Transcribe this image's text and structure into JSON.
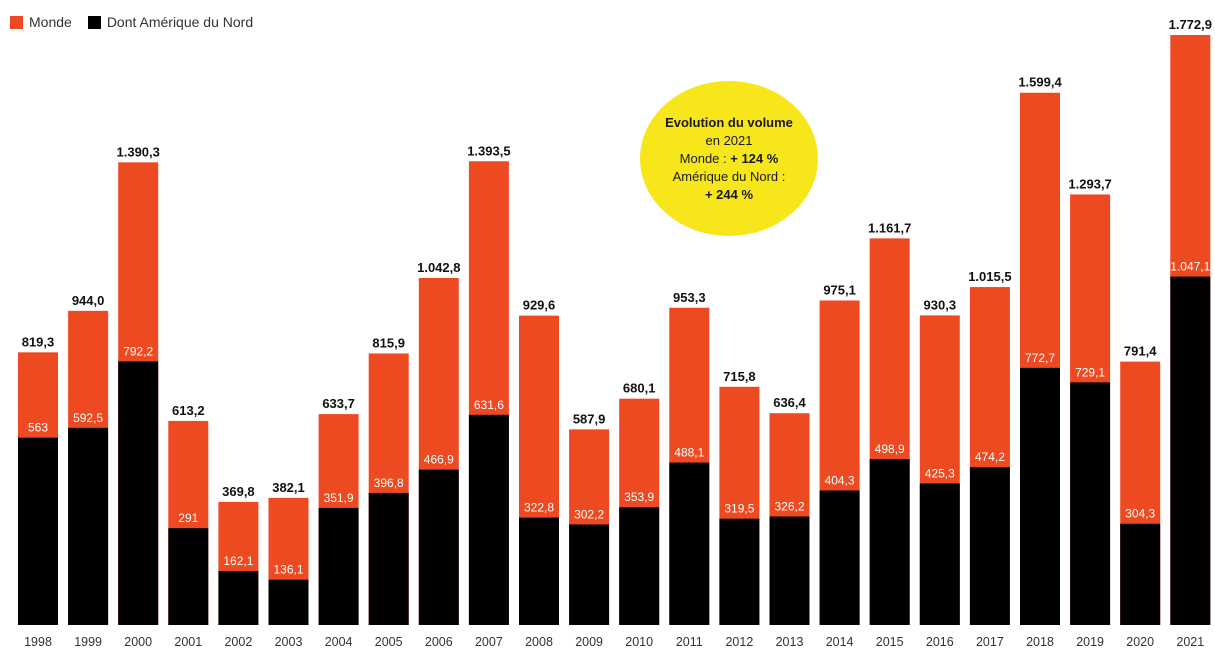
{
  "colors": {
    "monde": "#ee4a22",
    "amerique_du_nord": "#000000",
    "bubble": "#f6e61a"
  },
  "legend": {
    "monde": "Monde",
    "amerique_du_nord": "Dont Amérique du Nord"
  },
  "annotation": {
    "title_line1": "Evolution du volume",
    "title_line2": "en 2021",
    "monde_label": "Monde : ",
    "monde_value": "+ 124 %",
    "na_label": "Amérique du Nord :",
    "na_value": "+ 244 %"
  },
  "chart_data": {
    "type": "bar",
    "stacked": "overlay",
    "categories": [
      "1998",
      "1999",
      "2000",
      "2001",
      "2002",
      "2003",
      "2004",
      "2005",
      "2006",
      "2007",
      "2008",
      "2009",
      "2010",
      "2011",
      "2012",
      "2013",
      "2014",
      "2015",
      "2016",
      "2017",
      "2018",
      "2019",
      "2020",
      "2021"
    ],
    "series": [
      {
        "name": "Monde",
        "values": [
          819.3,
          944.0,
          1390.3,
          613.2,
          369.8,
          382.1,
          633.7,
          815.9,
          1042.8,
          1393.5,
          929.6,
          587.9,
          680.1,
          953.3,
          715.8,
          636.4,
          975.1,
          1161.7,
          930.3,
          1015.5,
          1599.4,
          1293.7,
          791.4,
          1772.9
        ],
        "labels": [
          "819,3",
          "944,0",
          "1.390,3",
          "613,2",
          "369,8",
          "382,1",
          "633,7",
          "815,9",
          "1.042,8",
          "1.393,5",
          "929,6",
          "587,9",
          "680,1",
          "953,3",
          "715,8",
          "636,4",
          "975,1",
          "1.161,7",
          "930,3",
          "1.015,5",
          "1.599,4",
          "1.293,7",
          "791,4",
          "1.772,9"
        ]
      },
      {
        "name": "Dont Amérique du Nord",
        "values": [
          563,
          592.5,
          792.2,
          291,
          162.1,
          136.1,
          351.9,
          396.8,
          466.9,
          631.6,
          322.8,
          302.2,
          353.9,
          488.1,
          319.5,
          326.2,
          404.3,
          498.9,
          425.3,
          474.2,
          772.7,
          729.1,
          304.3,
          1047.1
        ],
        "labels": [
          "563",
          "592,5",
          "792,2",
          "291",
          "162,1",
          "136,1",
          "351,9",
          "396,8",
          "466,9",
          "631,6",
          "322,8",
          "302,2",
          "353,9",
          "488,1",
          "319,5",
          "326,2",
          "404,3",
          "498,9",
          "425,3",
          "474,2",
          "772,7",
          "729,1",
          "304,3",
          "1.047,1"
        ]
      }
    ],
    "title": "",
    "xlabel": "",
    "ylabel": "",
    "ylim": [
      0,
      1772.9
    ],
    "grid": false,
    "legend_position": "top-left"
  }
}
